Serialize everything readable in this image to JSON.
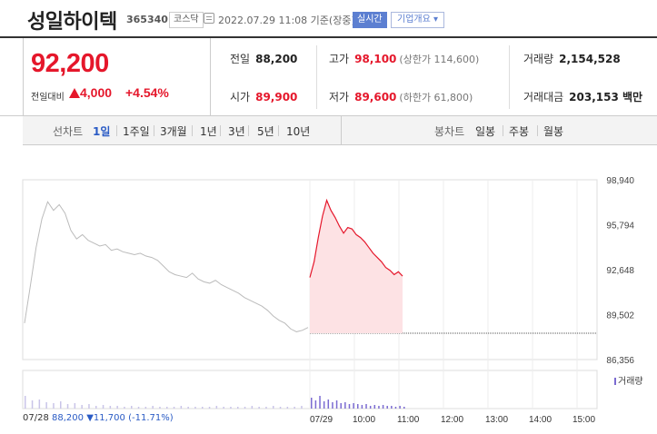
{
  "stock": {
    "name": "성일하이텍",
    "code": "365340",
    "market": "코스닥",
    "datetime": "2022.07.29 11:08 기준(장중)",
    "realtime_label": "실시간",
    "company_label": "기업개요 ▾"
  },
  "price": {
    "current": "92,200",
    "change_label": "전일대비",
    "change_value": "4,000",
    "change_rate": "+4.54%"
  },
  "stats": {
    "prev_close_label": "전일",
    "prev_close": "88,200",
    "high_label": "고가",
    "high": "98,100",
    "upper_limit": "(상한가 114,600)",
    "volume_label": "거래량",
    "volume": "2,154,528",
    "open_label": "시가",
    "open": "89,900",
    "low_label": "저가",
    "low": "89,600",
    "lower_limit": "(하한가 61,800)",
    "amount_label": "거래대금",
    "amount": "203,153 백만"
  },
  "tabs": {
    "line_label": "선차트",
    "line": [
      "1일",
      "1주일",
      "3개월",
      "1년",
      "3년",
      "5년",
      "10년"
    ],
    "candle_label": "봉차트",
    "candle": [
      "일봉",
      "주봉",
      "월봉"
    ],
    "active": "1일"
  },
  "chart_data": {
    "type": "line",
    "y_ticks": [
      "98,940",
      "95,794",
      "92,648",
      "89,502",
      "86,356"
    ],
    "ylim": [
      86356,
      98940
    ],
    "prev_close": 88200,
    "x_labels": [
      "07/28",
      "07/29",
      "10:00",
      "11:00",
      "12:00",
      "13:00",
      "14:00",
      "15:00"
    ],
    "series": [
      {
        "values": [
          88900,
          91500,
          94200,
          96200,
          97400,
          96800,
          97200,
          96600,
          95400,
          94800,
          95100,
          94700,
          94500,
          94300,
          94400,
          94000,
          94100,
          93900,
          93800,
          93700,
          93800,
          93600,
          93500,
          93300,
          92900,
          92500,
          92300,
          92200,
          92100,
          92400,
          92000,
          91800,
          91700,
          91900,
          91600,
          91400,
          91200,
          91000,
          90700,
          90500,
          90300,
          90100,
          89800,
          89400,
          89100,
          88900,
          88500,
          88300,
          88400,
          88600
        ]
      },
      {
        "values": [
          92100,
          93200,
          94900,
          96400,
          97500,
          96800,
          96300,
          95700,
          95200,
          95600,
          95500,
          95100,
          94900,
          94600,
          94200,
          93800,
          93500,
          93200,
          92800,
          92600,
          92300,
          92500,
          92200
        ]
      }
    ],
    "volume_label": "거래량"
  },
  "prev_day": {
    "date": "07/28",
    "price": "88,200",
    "change": "▼11,700",
    "rate": "(-11.71%)"
  }
}
